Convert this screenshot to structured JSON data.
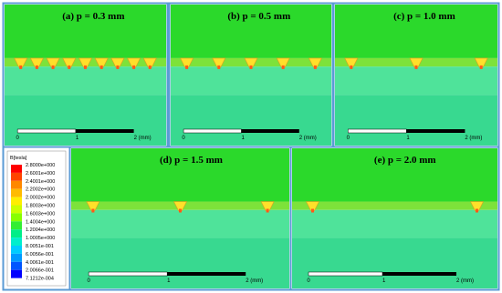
{
  "panels": [
    {
      "label": "(a)  p = 0.3 mm",
      "scale": [
        "0",
        "1",
        "2 (mm)"
      ]
    },
    {
      "label": "(b)  p = 0.5 mm",
      "scale": [
        "0",
        "1",
        "2 (mm)"
      ]
    },
    {
      "label": "(c)  p = 1.0 mm",
      "scale": [
        "0",
        "1",
        "2 (mm)"
      ]
    },
    {
      "label": "(d)  p = 1.5 mm",
      "scale": [
        "0",
        "1",
        "2 (mm)"
      ]
    },
    {
      "label": "(e)  p = 2.0 mm",
      "scale": [
        "0",
        "1",
        "2 (mm)"
      ]
    }
  ],
  "legend": {
    "title": "B[tesla]",
    "values": [
      "2.8000e+000",
      "2.6001e+000",
      "2.4001e+000",
      "2.2002e+000",
      "2.0002e+000",
      "1.8003e+000",
      "1.6003e+000",
      "1.4004e+000",
      "1.2004e+000",
      "1.0005e+000",
      "8.0051e-001",
      "6.0056e-001",
      "4.0061e-001",
      "2.0066e-001",
      "7.1212e-004"
    ]
  }
}
